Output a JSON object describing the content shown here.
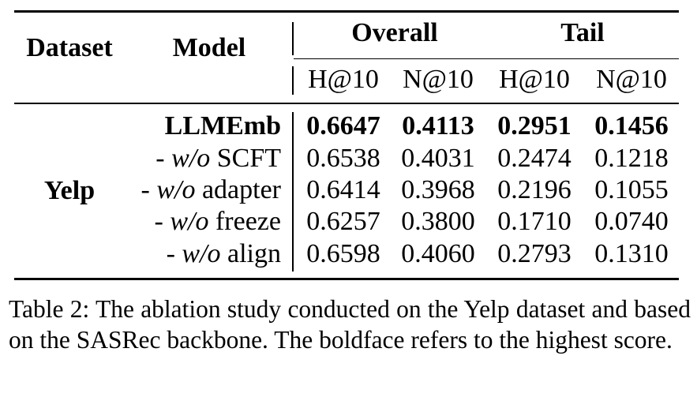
{
  "table": {
    "headers": {
      "dataset": "Dataset",
      "model": "Model",
      "groups": [
        "Overall",
        "Tail"
      ],
      "metrics": [
        "H@10",
        "N@10",
        "H@10",
        "N@10"
      ]
    },
    "dataset_name": "Yelp",
    "rows": [
      {
        "prefix": "",
        "italic": "",
        "suffix": "LLMEmb",
        "values": [
          "0.6647",
          "0.4113",
          "0.2951",
          "0.1456"
        ],
        "bold": true
      },
      {
        "prefix": "- ",
        "italic": "w/o",
        "suffix": " SCFT",
        "values": [
          "0.6538",
          "0.4031",
          "0.2474",
          "0.1218"
        ],
        "bold": false
      },
      {
        "prefix": "- ",
        "italic": "w/o",
        "suffix": " adapter",
        "values": [
          "0.6414",
          "0.3968",
          "0.2196",
          "0.1055"
        ],
        "bold": false
      },
      {
        "prefix": "- ",
        "italic": "w/o",
        "suffix": " freeze",
        "values": [
          "0.6257",
          "0.3800",
          "0.1710",
          "0.0740"
        ],
        "bold": false
      },
      {
        "prefix": "- ",
        "italic": "w/o",
        "suffix": " align",
        "values": [
          "0.6598",
          "0.4060",
          "0.2793",
          "0.1310"
        ],
        "bold": false
      }
    ]
  },
  "caption": "Table 2: The ablation study conducted on the Yelp dataset and based on the SASRec backbone. The boldface refers to the highest score."
}
